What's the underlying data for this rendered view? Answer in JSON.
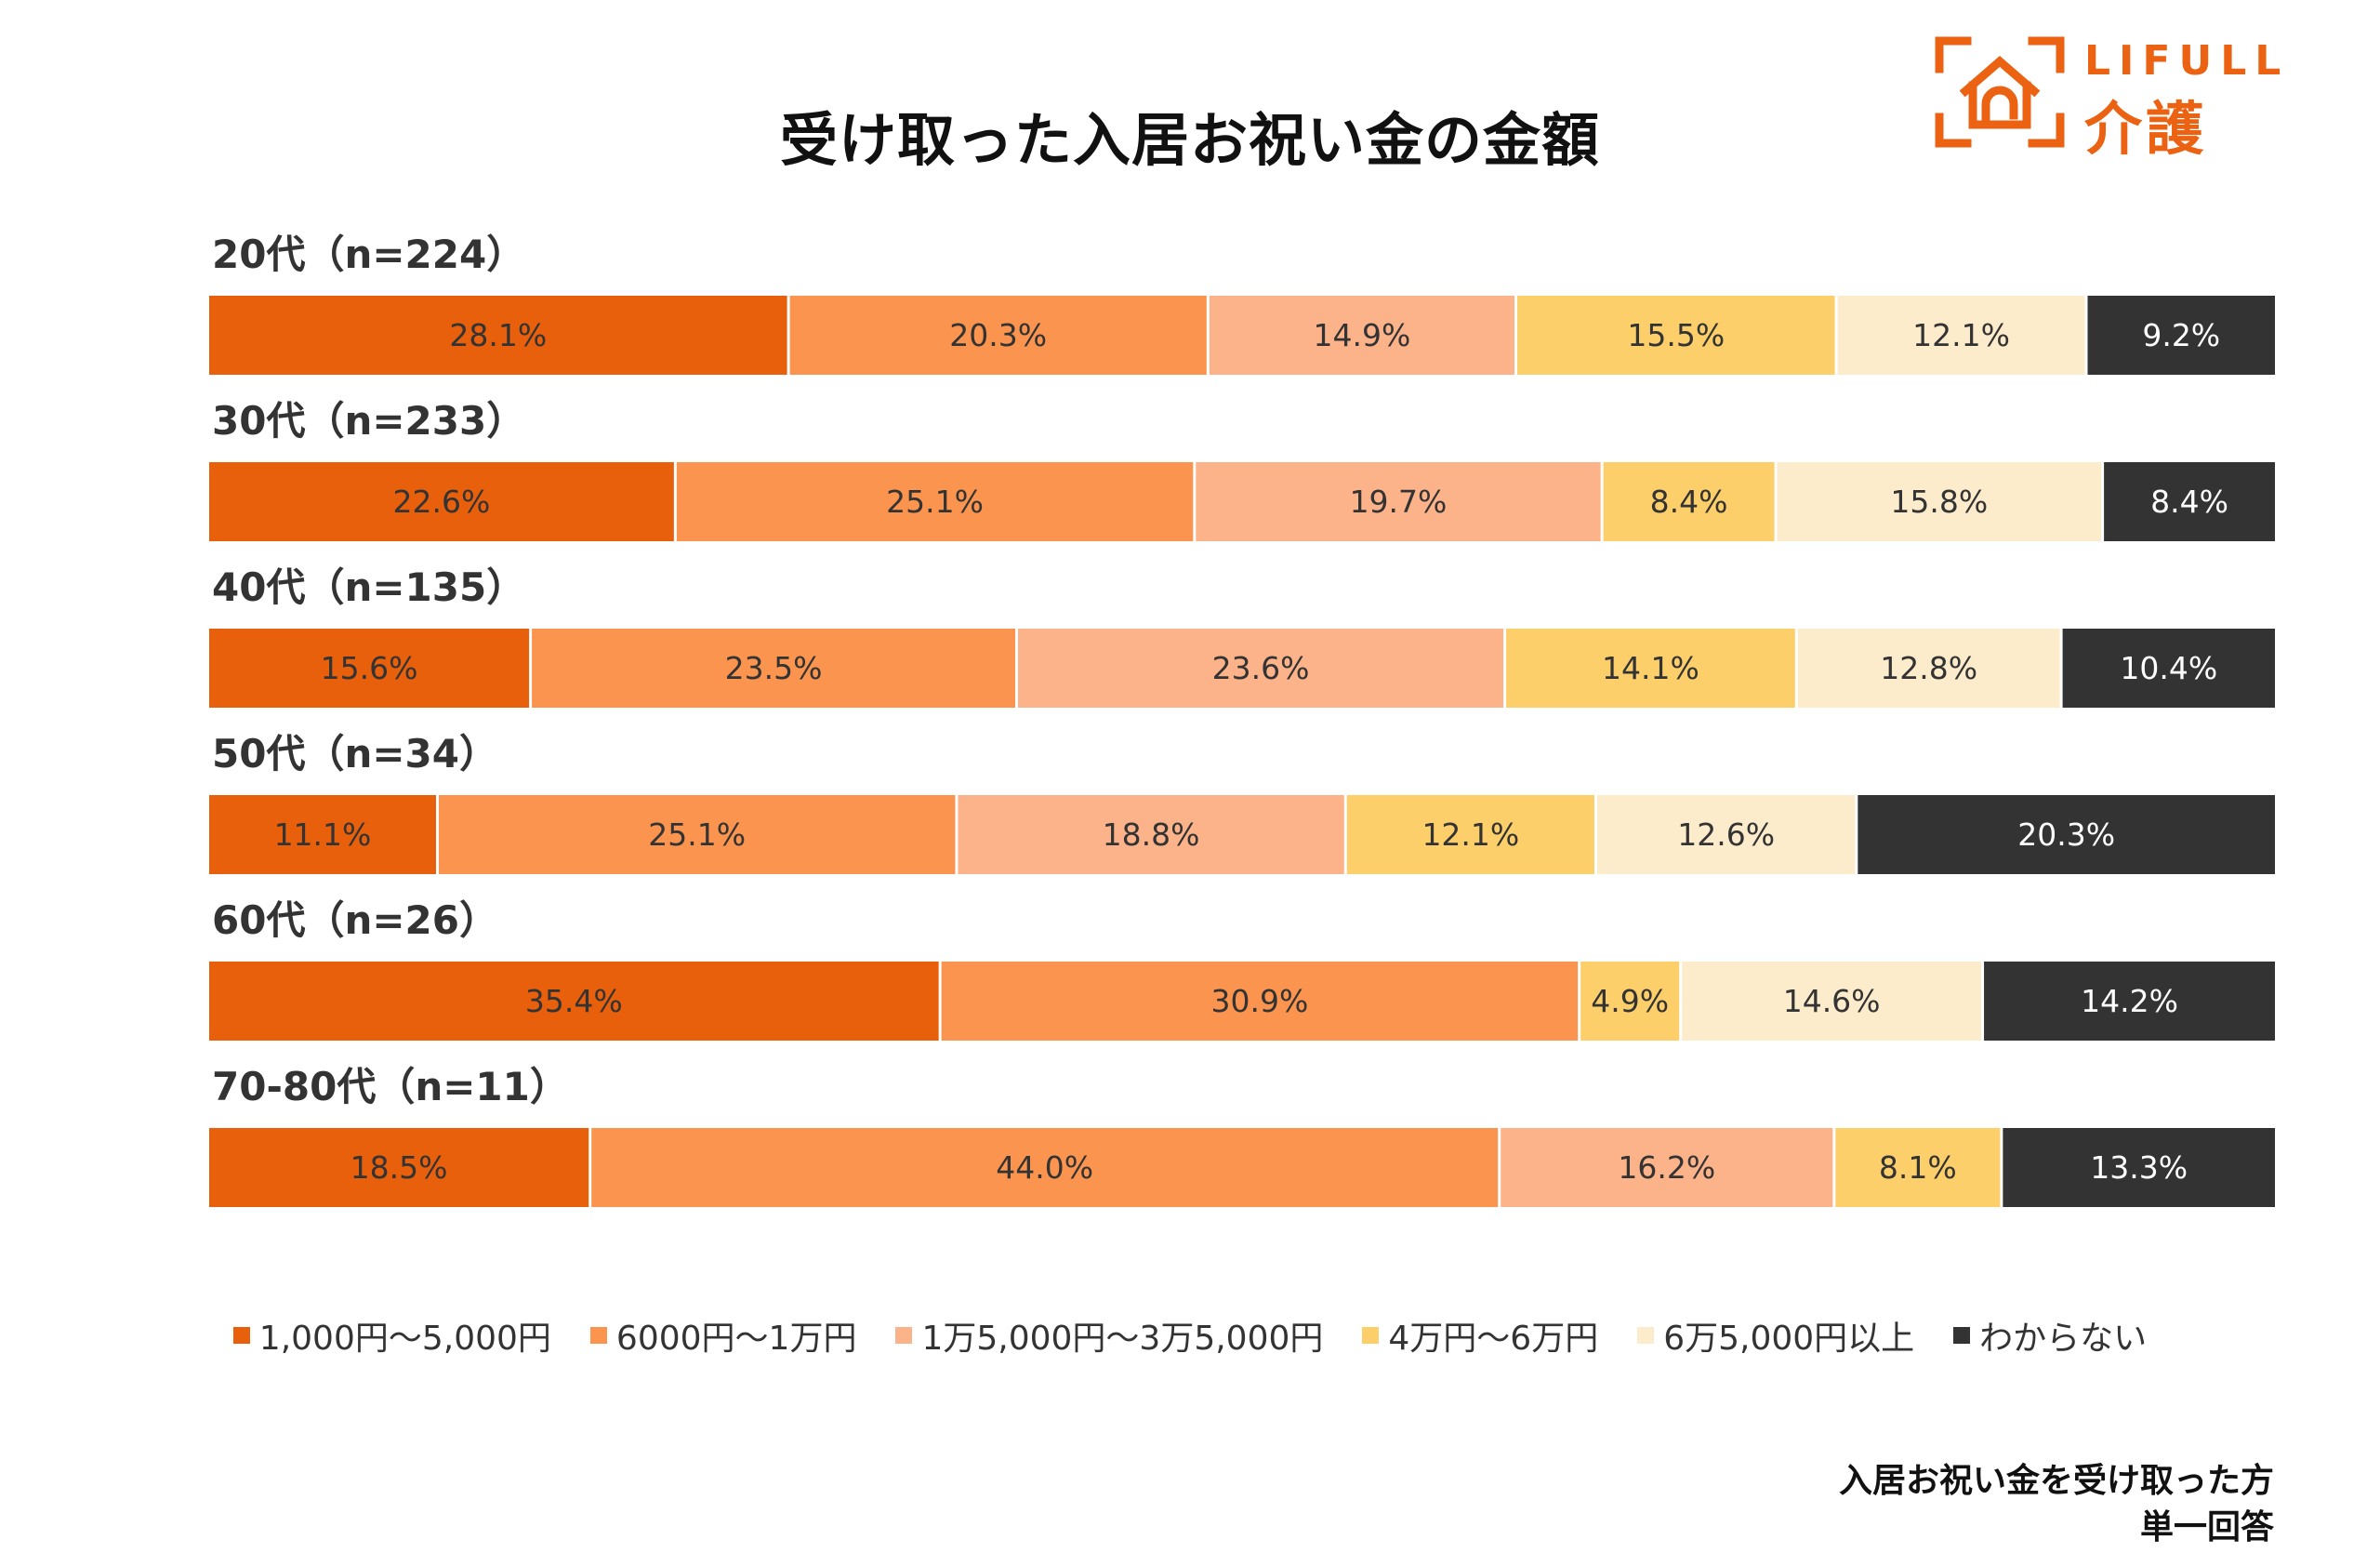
{
  "chart_data": {
    "type": "bar",
    "orientation": "horizontal-stacked-100",
    "title": "受け取った入居お祝い金の金額",
    "categories": [
      "20代（n=224）",
      "30代（n=233）",
      "40代（n=135）",
      "50代（n=34）",
      "60代（n=26）",
      "70-80代（n=11）"
    ],
    "series": [
      {
        "name": "1,000円～5,000円",
        "color": "#e85f0c",
        "text_color": "#333333",
        "values": [
          28.1,
          22.6,
          15.6,
          11.1,
          35.4,
          18.5
        ],
        "labels": [
          "28.1%",
          "22.6%",
          "15.6%",
          "11.1%",
          "35.4%",
          "18.5%"
        ]
      },
      {
        "name": "6000円～1万円",
        "color": "#fb944e",
        "text_color": "#333333",
        "values": [
          20.3,
          25.1,
          23.5,
          25.1,
          30.9,
          44.0
        ],
        "labels": [
          "20.3%",
          "25.1%",
          "23.5%",
          "25.1%",
          "30.9%",
          "44.0%"
        ]
      },
      {
        "name": "1万5,000円～3万5,000円",
        "color": "#fcb389",
        "text_color": "#333333",
        "values": [
          14.9,
          19.7,
          23.6,
          18.8,
          0,
          16.2
        ],
        "labels": [
          "14.9%",
          "19.7%",
          "23.6%",
          "18.8%",
          "",
          "16.2%"
        ]
      },
      {
        "name": "4万円～6万円",
        "color": "#fccf6a",
        "text_color": "#333333",
        "values": [
          15.5,
          8.4,
          14.1,
          12.1,
          4.9,
          8.1
        ],
        "labels": [
          "15.5%",
          "8.4%",
          "14.1%",
          "12.1%",
          "4.9%",
          "8.1%"
        ]
      },
      {
        "name": "6万5,000円以上",
        "color": "#fdeccb",
        "text_color": "#333333",
        "values": [
          12.1,
          15.8,
          12.8,
          12.6,
          14.6,
          0
        ],
        "labels": [
          "12.1%",
          "15.8%",
          "12.8%",
          "12.6%",
          "14.6%",
          ""
        ]
      },
      {
        "name": "わからない",
        "color": "#333333",
        "text_color": "#ffffff",
        "values": [
          9.2,
          8.4,
          10.4,
          20.3,
          14.2,
          13.3
        ],
        "labels": [
          "9.2%",
          "8.4%",
          "10.4%",
          "20.3%",
          "14.2%",
          "13.3%"
        ]
      }
    ],
    "legend_position": "bottom",
    "grid": false
  },
  "logo": {
    "text_1": "LIFULL",
    "text_2": "介護"
  },
  "note": {
    "line_1": "入居お祝い金を受け取った方",
    "line_2": "単一回答"
  }
}
